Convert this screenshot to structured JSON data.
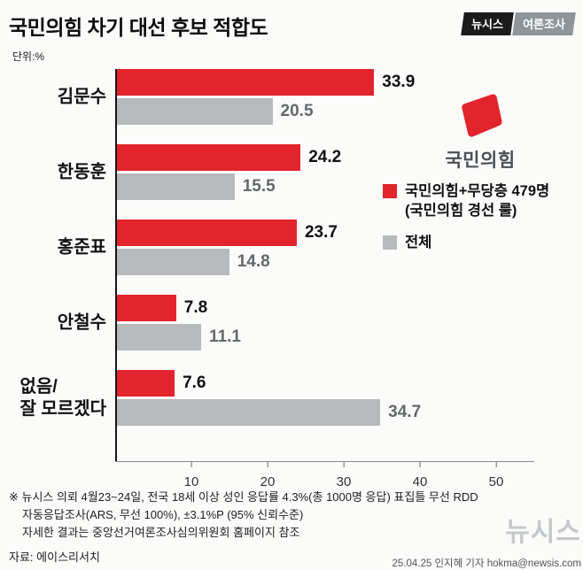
{
  "header": {
    "title": "국민의힘 차기 대선 후보 적합도",
    "badge_left": "뉴시스",
    "badge_right": "여론조사",
    "unit_label": "단위:%"
  },
  "chart_data": {
    "type": "bar",
    "orientation": "horizontal",
    "title": "국민의힘 차기 대선 후보 적합도",
    "unit": "%",
    "categories": [
      "김문수",
      "한동훈",
      "홍준표",
      "안철수",
      "없음/잘 모르겠다"
    ],
    "category_display": [
      [
        "김문수"
      ],
      [
        "한동훈"
      ],
      [
        "홍준표"
      ],
      [
        "안철수"
      ],
      [
        "없음/",
        "잘 모르겠다"
      ]
    ],
    "series": [
      {
        "name": "국민의힘+무당층 479명 (국민의힘 경선 룰)",
        "color": "#e2242d",
        "values": [
          33.9,
          24.2,
          23.7,
          7.8,
          7.6
        ]
      },
      {
        "name": "전체",
        "color": "#b6babc",
        "values": [
          20.5,
          15.5,
          14.8,
          11.1,
          34.7
        ]
      }
    ],
    "x_ticks": [
      10,
      20,
      30,
      40,
      50
    ],
    "xlim": [
      0,
      55
    ],
    "grid": false,
    "legend_position": "right"
  },
  "logo": {
    "label": "국민의힘"
  },
  "legend": {
    "item1_line1": "국민의힘+무당층 479명",
    "item1_line2": "(국민의힘 경선 룰)",
    "item2": "전체"
  },
  "footer": {
    "note_line1": "※ 뉴시스 의뢰 4월23~24일, 전국 18세 이상 성인 응답률 4.3%(총 1000명 응답) 표집틀 무선 RDD",
    "note_line2": "자동응답조사(ARS, 무선 100%), ±3.1%P (95% 신뢰수준)",
    "note_line3": "자세한 결과는 중앙선거여론조사심의위원회 홈페이지 참조",
    "source": "자료: 에이스리서치",
    "watermark": "뉴시스",
    "credit": "25.04.25 인지혜 기자 hokma@newsis.com"
  }
}
